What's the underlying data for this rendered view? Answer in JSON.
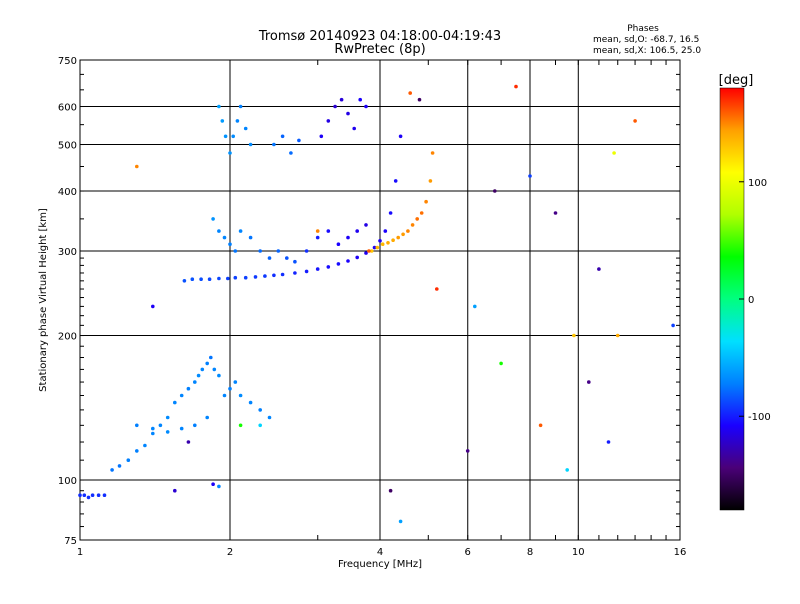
{
  "chart_data": {
    "type": "scatter",
    "title": "Tromsø 20140923 04:18:00-04:19:43",
    "subtitle": "RwPretec (8p)",
    "stats": {
      "heading": "Phases",
      "line1": "mean, sd,O: -68.7, 16.5",
      "line2": "mean, sd,X: 106.5, 25.0"
    },
    "xlabel": "Frequency [MHz]",
    "ylabel": "Stationary phase Virtual Height [km]",
    "xscale": "log",
    "yscale": "log",
    "xlim": [
      1,
      16
    ],
    "ylim": [
      75,
      750
    ],
    "xticks": [
      1,
      2,
      4,
      6,
      8,
      10,
      16
    ],
    "xtick_labels": [
      "1",
      "2",
      "4",
      "6",
      "8",
      "10",
      "16"
    ],
    "yticks": [
      75,
      100,
      200,
      300,
      400,
      500,
      600,
      750
    ],
    "ytick_labels": [
      "75",
      "100",
      "200",
      "300",
      "400",
      "500",
      "600",
      "750"
    ],
    "grid": true,
    "colorbar": {
      "label": "[deg]",
      "min": -180,
      "max": 180,
      "ticks": [
        100,
        0,
        -100
      ],
      "tick_labels": [
        "100",
        "0",
        "-100"
      ],
      "colors": [
        "#000000",
        "#4a0078",
        "#1a00ff",
        "#0080ff",
        "#00e0ff",
        "#00ff80",
        "#00ff00",
        "#b0ff00",
        "#ffff00",
        "#ffa000",
        "#ff0000"
      ]
    },
    "series": [
      {
        "x": [
          1.0,
          1.02,
          1.04,
          1.06,
          1.09,
          1.12,
          1.16,
          1.2,
          1.25,
          1.3,
          1.35,
          1.4,
          1.45,
          1.5,
          1.55,
          1.6,
          1.65,
          1.7,
          1.73,
          1.76,
          1.8,
          1.83,
          1.86,
          1.9,
          1.95,
          2.0,
          2.05,
          2.1,
          2.2,
          2.3,
          2.4,
          1.3,
          1.4,
          1.5,
          1.6,
          1.7,
          1.8
        ],
        "y": [
          93,
          93,
          92,
          93,
          93,
          93,
          105,
          107,
          110,
          115,
          118,
          125,
          130,
          135,
          145,
          150,
          155,
          160,
          165,
          170,
          175,
          180,
          170,
          165,
          150,
          155,
          160,
          150,
          145,
          140,
          135,
          130,
          128,
          126,
          128,
          130,
          135
        ],
        "phase": [
          -95,
          -95,
          -95,
          -95,
          -95,
          -95,
          -75,
          -75,
          -72,
          -72,
          -70,
          -70,
          -70,
          -68,
          -70,
          -70,
          -72,
          -70,
          -68,
          -70,
          -72,
          -75,
          -70,
          -68,
          -70,
          -72,
          -70,
          -68,
          -70,
          -72,
          -70,
          -72,
          -70,
          -68,
          -70,
          -72,
          -70
        ]
      },
      {
        "x": [
          1.62,
          1.68,
          1.75,
          1.82,
          1.9,
          1.98,
          2.05,
          2.15,
          2.25,
          2.35,
          2.45,
          2.55,
          2.7,
          2.85,
          3.0,
          3.15,
          3.3,
          3.45,
          3.6,
          3.75,
          3.9,
          4.0,
          4.1,
          4.2,
          4.3,
          4.4
        ],
        "y": [
          260,
          262,
          262,
          262,
          263,
          263,
          264,
          264,
          265,
          266,
          267,
          268,
          270,
          272,
          275,
          278,
          282,
          286,
          291,
          297,
          305,
          315,
          330,
          360,
          420,
          520
        ],
        "phase": [
          -85,
          -85,
          -86,
          -88,
          -88,
          -90,
          -90,
          -90,
          -92,
          -92,
          -95,
          -95,
          -98,
          -100,
          -102,
          -105,
          -105,
          -108,
          -110,
          -112,
          -110,
          -110,
          -108,
          -105,
          -105,
          -110
        ]
      },
      {
        "x": [
          1.85,
          1.9,
          1.95,
          2.0,
          2.05,
          2.1,
          2.2,
          2.3,
          2.4,
          2.5,
          2.6,
          2.7,
          2.85,
          3.0,
          3.15,
          3.3,
          3.45,
          3.6,
          3.75
        ],
        "y": [
          350,
          330,
          320,
          310,
          300,
          330,
          320,
          300,
          290,
          300,
          290,
          285,
          300,
          320,
          330,
          310,
          320,
          330,
          340
        ],
        "phase": [
          -65,
          -70,
          -70,
          -72,
          -75,
          -70,
          -75,
          -78,
          -80,
          -80,
          -85,
          -85,
          -95,
          -100,
          -105,
          -108,
          -110,
          -112,
          -115
        ]
      },
      {
        "x": [
          1.9,
          1.93,
          1.96,
          2.0,
          2.03,
          2.07,
          2.1,
          2.15,
          2.2,
          2.45,
          2.55,
          2.65,
          2.75,
          3.05,
          3.15,
          3.25,
          3.35,
          3.45,
          3.55,
          3.65,
          3.75
        ],
        "y": [
          600,
          560,
          520,
          480,
          520,
          560,
          600,
          540,
          500,
          500,
          520,
          480,
          510,
          520,
          560,
          600,
          620,
          580,
          540,
          620,
          600
        ],
        "phase": [
          -60,
          -62,
          -65,
          -65,
          -68,
          -70,
          -72,
          -70,
          -68,
          -75,
          -80,
          -78,
          -82,
          -110,
          -115,
          -120,
          -118,
          -115,
          -112,
          -108,
          -110
        ]
      },
      {
        "x": [
          3.85,
          3.95,
          4.05,
          4.15,
          4.25,
          4.35,
          4.45,
          4.55,
          4.65,
          4.75,
          4.85,
          4.95,
          5.05,
          5.1
        ],
        "y": [
          300,
          305,
          310,
          312,
          316,
          320,
          325,
          330,
          340,
          350,
          360,
          380,
          420,
          480
        ],
        "phase": [
          130,
          135,
          135,
          140,
          140,
          145,
          145,
          150,
          150,
          155,
          155,
          150,
          145,
          150
        ]
      },
      {
        "x": [
          1.3,
          1.4,
          1.55,
          1.65,
          1.85,
          1.9,
          2.1,
          2.3,
          3.0,
          3.8,
          4.2,
          4.4,
          4.6,
          4.8,
          5.2,
          6.0,
          6.2,
          6.8,
          7.0,
          7.5,
          8.0,
          8.4,
          9.0,
          9.5,
          9.8,
          10.5,
          11.0,
          11.5,
          11.8,
          12.0,
          13.0,
          15.5
        ],
        "y": [
          450,
          230,
          95,
          120,
          98,
          97,
          130,
          130,
          330,
          300,
          95,
          82,
          640,
          620,
          250,
          115,
          230,
          400,
          175,
          660,
          430,
          130,
          360,
          105,
          200,
          160,
          275,
          120,
          480,
          200,
          560,
          210
        ],
        "phase": [
          150,
          -110,
          -120,
          -130,
          -110,
          -70,
          40,
          -40,
          150,
          160,
          -150,
          -60,
          160,
          -150,
          170,
          -140,
          -60,
          -150,
          40,
          170,
          -90,
          160,
          -140,
          -40,
          130,
          -140,
          -130,
          -100,
          100,
          140,
          160,
          -90
        ]
      }
    ]
  }
}
